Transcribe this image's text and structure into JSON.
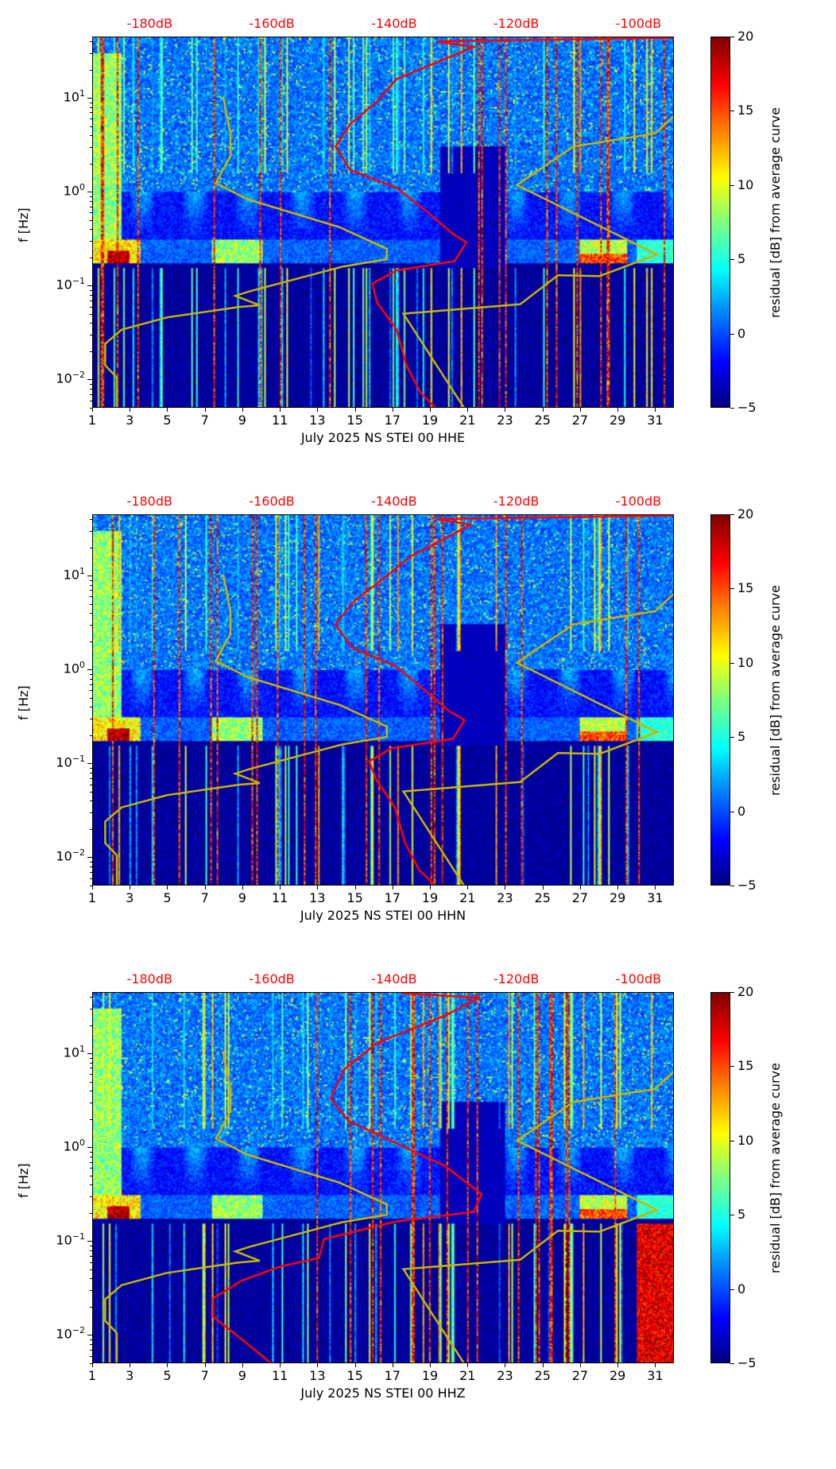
{
  "chart_data": {
    "type": "heatmap",
    "shared": {
      "x_ticks": [
        "1",
        "3",
        "5",
        "7",
        "9",
        "11",
        "13",
        "15",
        "17",
        "19",
        "21",
        "23",
        "25",
        "27",
        "29",
        "31"
      ],
      "x_tick_values": [
        1,
        3,
        5,
        7,
        9,
        11,
        13,
        15,
        17,
        19,
        21,
        23,
        25,
        27,
        29,
        31
      ],
      "xlim": [
        1,
        32
      ],
      "ylabel": "f [Hz]",
      "y_scale": "log",
      "ylim_hz": [
        0.005,
        45
      ],
      "y_ticks": [
        {
          "base": "10",
          "exp": "1",
          "value": 10
        },
        {
          "base": "10",
          "exp": "0",
          "value": 1
        },
        {
          "base": "10",
          "exp": "−1",
          "value": 0.1
        },
        {
          "base": "10",
          "exp": "−2",
          "value": 0.01
        }
      ],
      "top_axis_labels": [
        "-180dB",
        "-160dB",
        "-140dB",
        "-120dB",
        "-100dB"
      ],
      "top_axis_db_values": [
        -180,
        -160,
        -140,
        -120,
        -100
      ],
      "top_axis_db_range": [
        -189.4,
        -94.2
      ],
      "colorbar": {
        "label": "residual [dB] from average curve",
        "range": [
          -5,
          20
        ],
        "ticks": [
          "20",
          "15",
          "10",
          "5",
          "0",
          "−5"
        ],
        "tick_values": [
          20,
          15,
          10,
          5,
          0,
          -5
        ],
        "colormap": "jet"
      },
      "colors": {
        "average_curve": "#ff0000",
        "noise_models": "#c8b400",
        "top_labels": "#ff0000"
      },
      "nlnm": {
        "name": "low noise model",
        "db": [
          -168.1,
          -166.9,
          -166.9,
          -169.3,
          -164.2,
          -149.0,
          -141.3,
          -141.3,
          -148.6,
          -163.7,
          -166.1,
          -162.1,
          -165.6,
          -177.3,
          -184.7,
          -187.4,
          -187.4,
          -185.5,
          -185.5
        ],
        "log10_f": [
          1.02,
          0.63,
          0.39,
          0.1,
          -0.07,
          -0.37,
          -0.6,
          -0.71,
          -0.79,
          -1.05,
          -1.1,
          -1.2,
          -1.22,
          -1.33,
          -1.46,
          -1.61,
          -1.84,
          -1.97,
          -2.29
        ]
      },
      "nhnm": {
        "name": "high noise model",
        "db": [
          -91.4,
          -97.4,
          -110.8,
          -120.0,
          -97.1,
          -106.5,
          -113.3,
          -119.5,
          -138.6,
          -128.7
        ],
        "log10_f": [
          0.99,
          0.63,
          0.49,
          0.08,
          -0.66,
          -0.89,
          -0.88,
          -1.19,
          -1.29,
          -2.29
        ]
      }
    },
    "panels": [
      {
        "xlabel": "July 2025 NS STEI 00 HHE",
        "seed": 11,
        "average_curve": {
          "db": [
            -94.2,
            -133.1,
            -127.1,
            -139.7,
            -142.9,
            -147.3,
            -149.7,
            -147.3,
            -139.7,
            -135.0,
            -130.5,
            -128.3,
            -130.2,
            -139.7,
            -143.7,
            -142.9,
            -139.7,
            -138.1,
            -135.8,
            -133.4
          ],
          "log10_f": [
            1.65,
            1.61,
            1.55,
            1.21,
            0.97,
            0.73,
            0.49,
            0.24,
            0.05,
            -0.19,
            -0.44,
            -0.53,
            -0.73,
            -0.83,
            -0.97,
            -1.17,
            -1.46,
            -1.84,
            -2.13,
            -2.29
          ]
        }
      },
      {
        "xlabel": "July 2025 NS STEI 00 HHN",
        "seed": 23,
        "average_curve": {
          "db": [
            -94.2,
            -133.1,
            -127.6,
            -137.5,
            -142.0,
            -146.8,
            -149.7,
            -147.0,
            -140.0,
            -135.5,
            -131.0,
            -128.6,
            -130.5,
            -140.5,
            -144.2,
            -143.0,
            -140.0,
            -138.3,
            -136.0,
            -133.4
          ],
          "log10_f": [
            1.65,
            1.61,
            1.55,
            1.21,
            0.97,
            0.73,
            0.49,
            0.24,
            0.05,
            -0.19,
            -0.44,
            -0.53,
            -0.73,
            -0.83,
            -0.97,
            -1.17,
            -1.46,
            -1.84,
            -2.13,
            -2.29
          ]
        }
      },
      {
        "xlabel": "July 2025 NS STEI 00 HHZ",
        "seed": 37,
        "average_curve": {
          "db": [
            -139.0,
            -126.3,
            -131.8,
            -142.9,
            -148.4,
            -150.5,
            -147.6,
            -139.7,
            -131.8,
            -125.8,
            -127.1,
            -139.7,
            -151.6,
            -152.4,
            -158.7,
            -165.0,
            -169.7,
            -169.7,
            -165.0,
            -160.3
          ],
          "log10_f": [
            1.65,
            1.6,
            1.41,
            1.12,
            0.83,
            0.53,
            0.29,
            0.05,
            -0.19,
            -0.49,
            -0.68,
            -0.78,
            -0.97,
            -1.17,
            -1.26,
            -1.41,
            -1.6,
            -1.8,
            -2.04,
            -2.29
          ]
        }
      }
    ]
  }
}
